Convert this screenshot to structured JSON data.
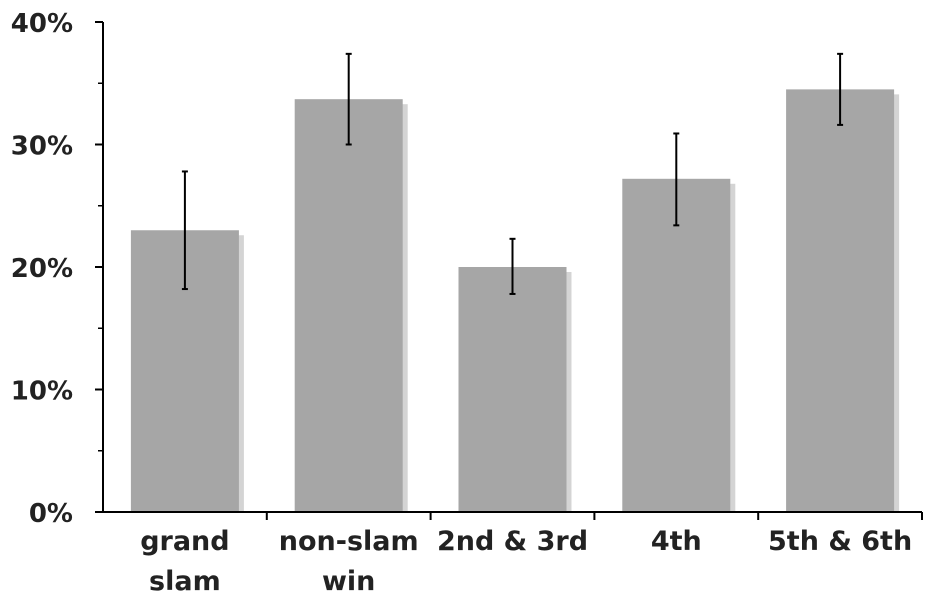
{
  "chart_data": {
    "type": "bar",
    "categories": [
      "grand slam",
      "non-slam win",
      "2nd & 3rd",
      "4th",
      "5th & 6th"
    ],
    "category_lines": [
      [
        "grand",
        "slam"
      ],
      [
        "non-slam",
        "win"
      ],
      [
        "2nd & 3rd"
      ],
      [
        "4th"
      ],
      [
        "5th & 6th"
      ]
    ],
    "values": [
      23,
      33.7,
      20,
      27.2,
      34.5
    ],
    "error_low": [
      18.2,
      30,
      17.8,
      23.4,
      31.6
    ],
    "error_high": [
      27.8,
      37.4,
      22.3,
      30.9,
      37.4
    ],
    "ylim": [
      0,
      40
    ],
    "yticks": [
      0,
      10,
      20,
      30,
      40
    ],
    "ytick_labels": [
      "0%",
      "10%",
      "20%",
      "30%",
      "40%"
    ],
    "title": "",
    "xlabel": "",
    "ylabel": "",
    "grid": false,
    "colors": {
      "bar": "#a6a6a6",
      "bar_shadow": "#d4d4d4",
      "axis": "#000000",
      "error_bar": "#000000"
    }
  }
}
